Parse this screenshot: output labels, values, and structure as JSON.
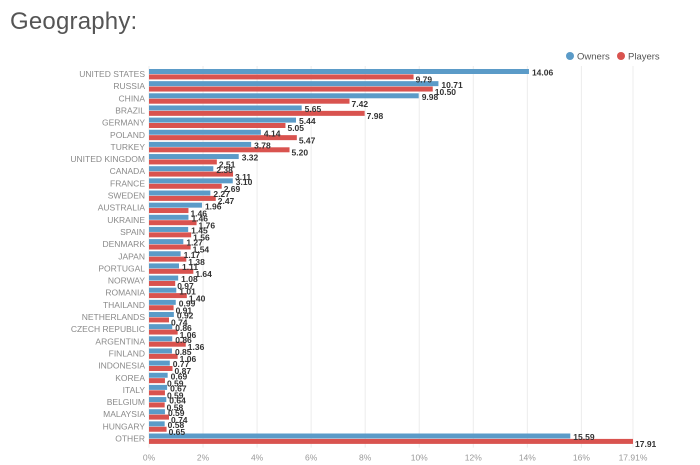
{
  "page_title": "Geography:",
  "chart_data": {
    "type": "bar",
    "orientation": "horizontal",
    "title": "Geography:",
    "xlabel": "",
    "ylabel": "",
    "xlim": [
      0,
      17.91
    ],
    "x_ticks": [
      "0%",
      "2%",
      "4%",
      "6%",
      "8%",
      "10%",
      "12%",
      "14%",
      "16%",
      "17.91%"
    ],
    "x_tick_values": [
      0,
      2,
      4,
      6,
      8,
      10,
      12,
      14,
      16,
      17.91
    ],
    "grid": true,
    "legend_position": "top-right",
    "categories": [
      "UNITED STATES",
      "RUSSIA",
      "CHINA",
      "BRAZIL",
      "GERMANY",
      "POLAND",
      "TURKEY",
      "UNITED KINGDOM",
      "CANADA",
      "FRANCE",
      "SWEDEN",
      "AUSTRALIA",
      "UKRAINE",
      "SPAIN",
      "DENMARK",
      "JAPAN",
      "PORTUGAL",
      "NORWAY",
      "ROMANIA",
      "THAILAND",
      "NETHERLANDS",
      "CZECH REPUBLIC",
      "ARGENTINA",
      "FINLAND",
      "INDONESIA",
      "KOREA",
      "ITALY",
      "BELGIUM",
      "MALAYSIA",
      "HUNGARY",
      "OTHER"
    ],
    "series": [
      {
        "name": "Owners",
        "color": "#5b9bc8",
        "values": [
          14.06,
          10.71,
          9.98,
          5.65,
          5.44,
          4.14,
          3.78,
          3.32,
          2.38,
          3.1,
          2.27,
          1.96,
          1.46,
          1.45,
          1.27,
          1.17,
          1.11,
          1.08,
          1.01,
          0.99,
          0.92,
          0.86,
          0.86,
          0.85,
          0.77,
          0.69,
          0.67,
          0.64,
          0.59,
          0.58,
          15.59
        ],
        "labels": [
          "14.06",
          "10.71",
          "9.98",
          "5.65",
          "5.44",
          "4.14",
          "3.78",
          "3.32",
          "2.38",
          "3.10",
          "2.27",
          "1.96",
          "1.46",
          "1.45",
          "1.27",
          "1.17",
          "1.11",
          "1.08",
          "1.01",
          "0.99",
          "0.92",
          "0.86",
          "0.86",
          "0.85",
          "0.77",
          "0.69",
          "0.67",
          "0.64",
          "0.59",
          "0.58",
          "15.59"
        ]
      },
      {
        "name": "Players",
        "color": "#d9534f",
        "values": [
          9.79,
          10.5,
          7.42,
          7.98,
          5.05,
          5.47,
          5.2,
          2.51,
          3.11,
          2.69,
          2.47,
          1.46,
          1.76,
          1.56,
          1.54,
          1.38,
          1.64,
          0.97,
          1.4,
          0.91,
          0.74,
          1.06,
          1.36,
          1.06,
          0.87,
          0.59,
          0.59,
          0.58,
          0.74,
          0.65,
          17.91
        ],
        "labels": [
          "9.79",
          "10.50",
          "7.42",
          "7.98",
          "5.05",
          "5.47",
          "5.20",
          "2.51",
          "3.11",
          "2.69",
          "2.47",
          "1.46",
          "1.76",
          "1.56",
          "1.54",
          "1.38",
          "1.64",
          "0.97",
          "1.40",
          "0.91",
          "0.74",
          "1.06",
          "1.36",
          "1.06",
          "0.87",
          "0.59",
          "0.59",
          "0.58",
          "0.74",
          "0.65",
          "17.91"
        ]
      }
    ]
  }
}
